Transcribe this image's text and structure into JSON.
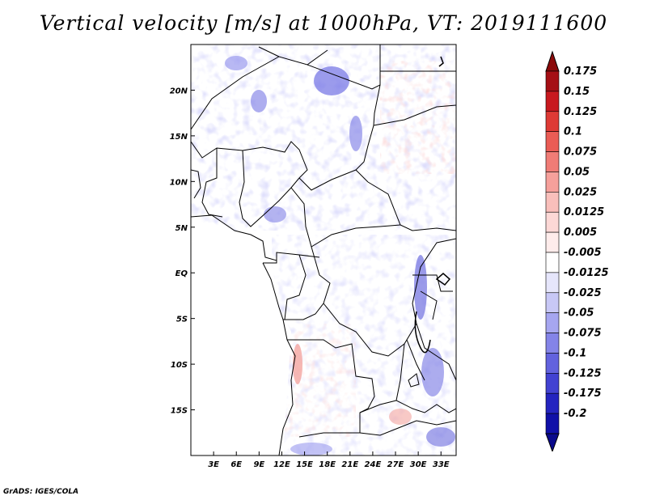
{
  "title": "Vertical velocity [m/s] at 1000hPa, VT: 2019111600",
  "footer": "GrADS: IGES/COLA",
  "map": {
    "lon_range": [
      0,
      35
    ],
    "lat_range": [
      -20,
      25
    ],
    "lat_ticks": [
      {
        "value": 20,
        "label": "20N"
      },
      {
        "value": 15,
        "label": "15N"
      },
      {
        "value": 10,
        "label": "10N"
      },
      {
        "value": 5,
        "label": "5N"
      },
      {
        "value": 0,
        "label": "EQ"
      },
      {
        "value": -5,
        "label": "5S"
      },
      {
        "value": -10,
        "label": "10S"
      },
      {
        "value": -15,
        "label": "15S"
      }
    ],
    "lon_ticks": [
      {
        "value": 3,
        "label": "3E"
      },
      {
        "value": 6,
        "label": "6E"
      },
      {
        "value": 9,
        "label": "9E"
      },
      {
        "value": 12,
        "label": "12E"
      },
      {
        "value": 15,
        "label": "15E"
      },
      {
        "value": 18,
        "label": "18E"
      },
      {
        "value": 21,
        "label": "21E"
      },
      {
        "value": 24,
        "label": "24E"
      },
      {
        "value": 27,
        "label": "27E"
      },
      {
        "value": 30,
        "label": "30E"
      },
      {
        "value": 33,
        "label": "33E"
      }
    ]
  },
  "colorbar": {
    "levels": [
      {
        "label": "0.175",
        "color": "#a50f15"
      },
      {
        "label": "0.15",
        "color": "#c8191f"
      },
      {
        "label": "0.125",
        "color": "#de3a35"
      },
      {
        "label": "0.1",
        "color": "#ea5c55"
      },
      {
        "label": "0.075",
        "color": "#f07c76"
      },
      {
        "label": "0.05",
        "color": "#f6a09b"
      },
      {
        "label": "0.025",
        "color": "#f9bfbb"
      },
      {
        "label": "0.0125",
        "color": "#fcd8d6"
      },
      {
        "label": "0.005",
        "color": "#feeceb"
      },
      {
        "label": "-0.005",
        "color": "#ffffff"
      },
      {
        "label": "-0.0125",
        "color": "#e6e6fb"
      },
      {
        "label": "-0.025",
        "color": "#c8c8f6"
      },
      {
        "label": "-0.05",
        "color": "#a6a6f0"
      },
      {
        "label": "-0.075",
        "color": "#8484e8"
      },
      {
        "label": "-0.1",
        "color": "#6262de"
      },
      {
        "label": "-0.125",
        "color": "#4242d2"
      },
      {
        "label": "-0.175",
        "color": "#2424c0"
      },
      {
        "label": "-0.2",
        "color": "#1010a8"
      }
    ],
    "top_color": "#8b0a0a",
    "bottom_color": "#0a0a8c"
  }
}
